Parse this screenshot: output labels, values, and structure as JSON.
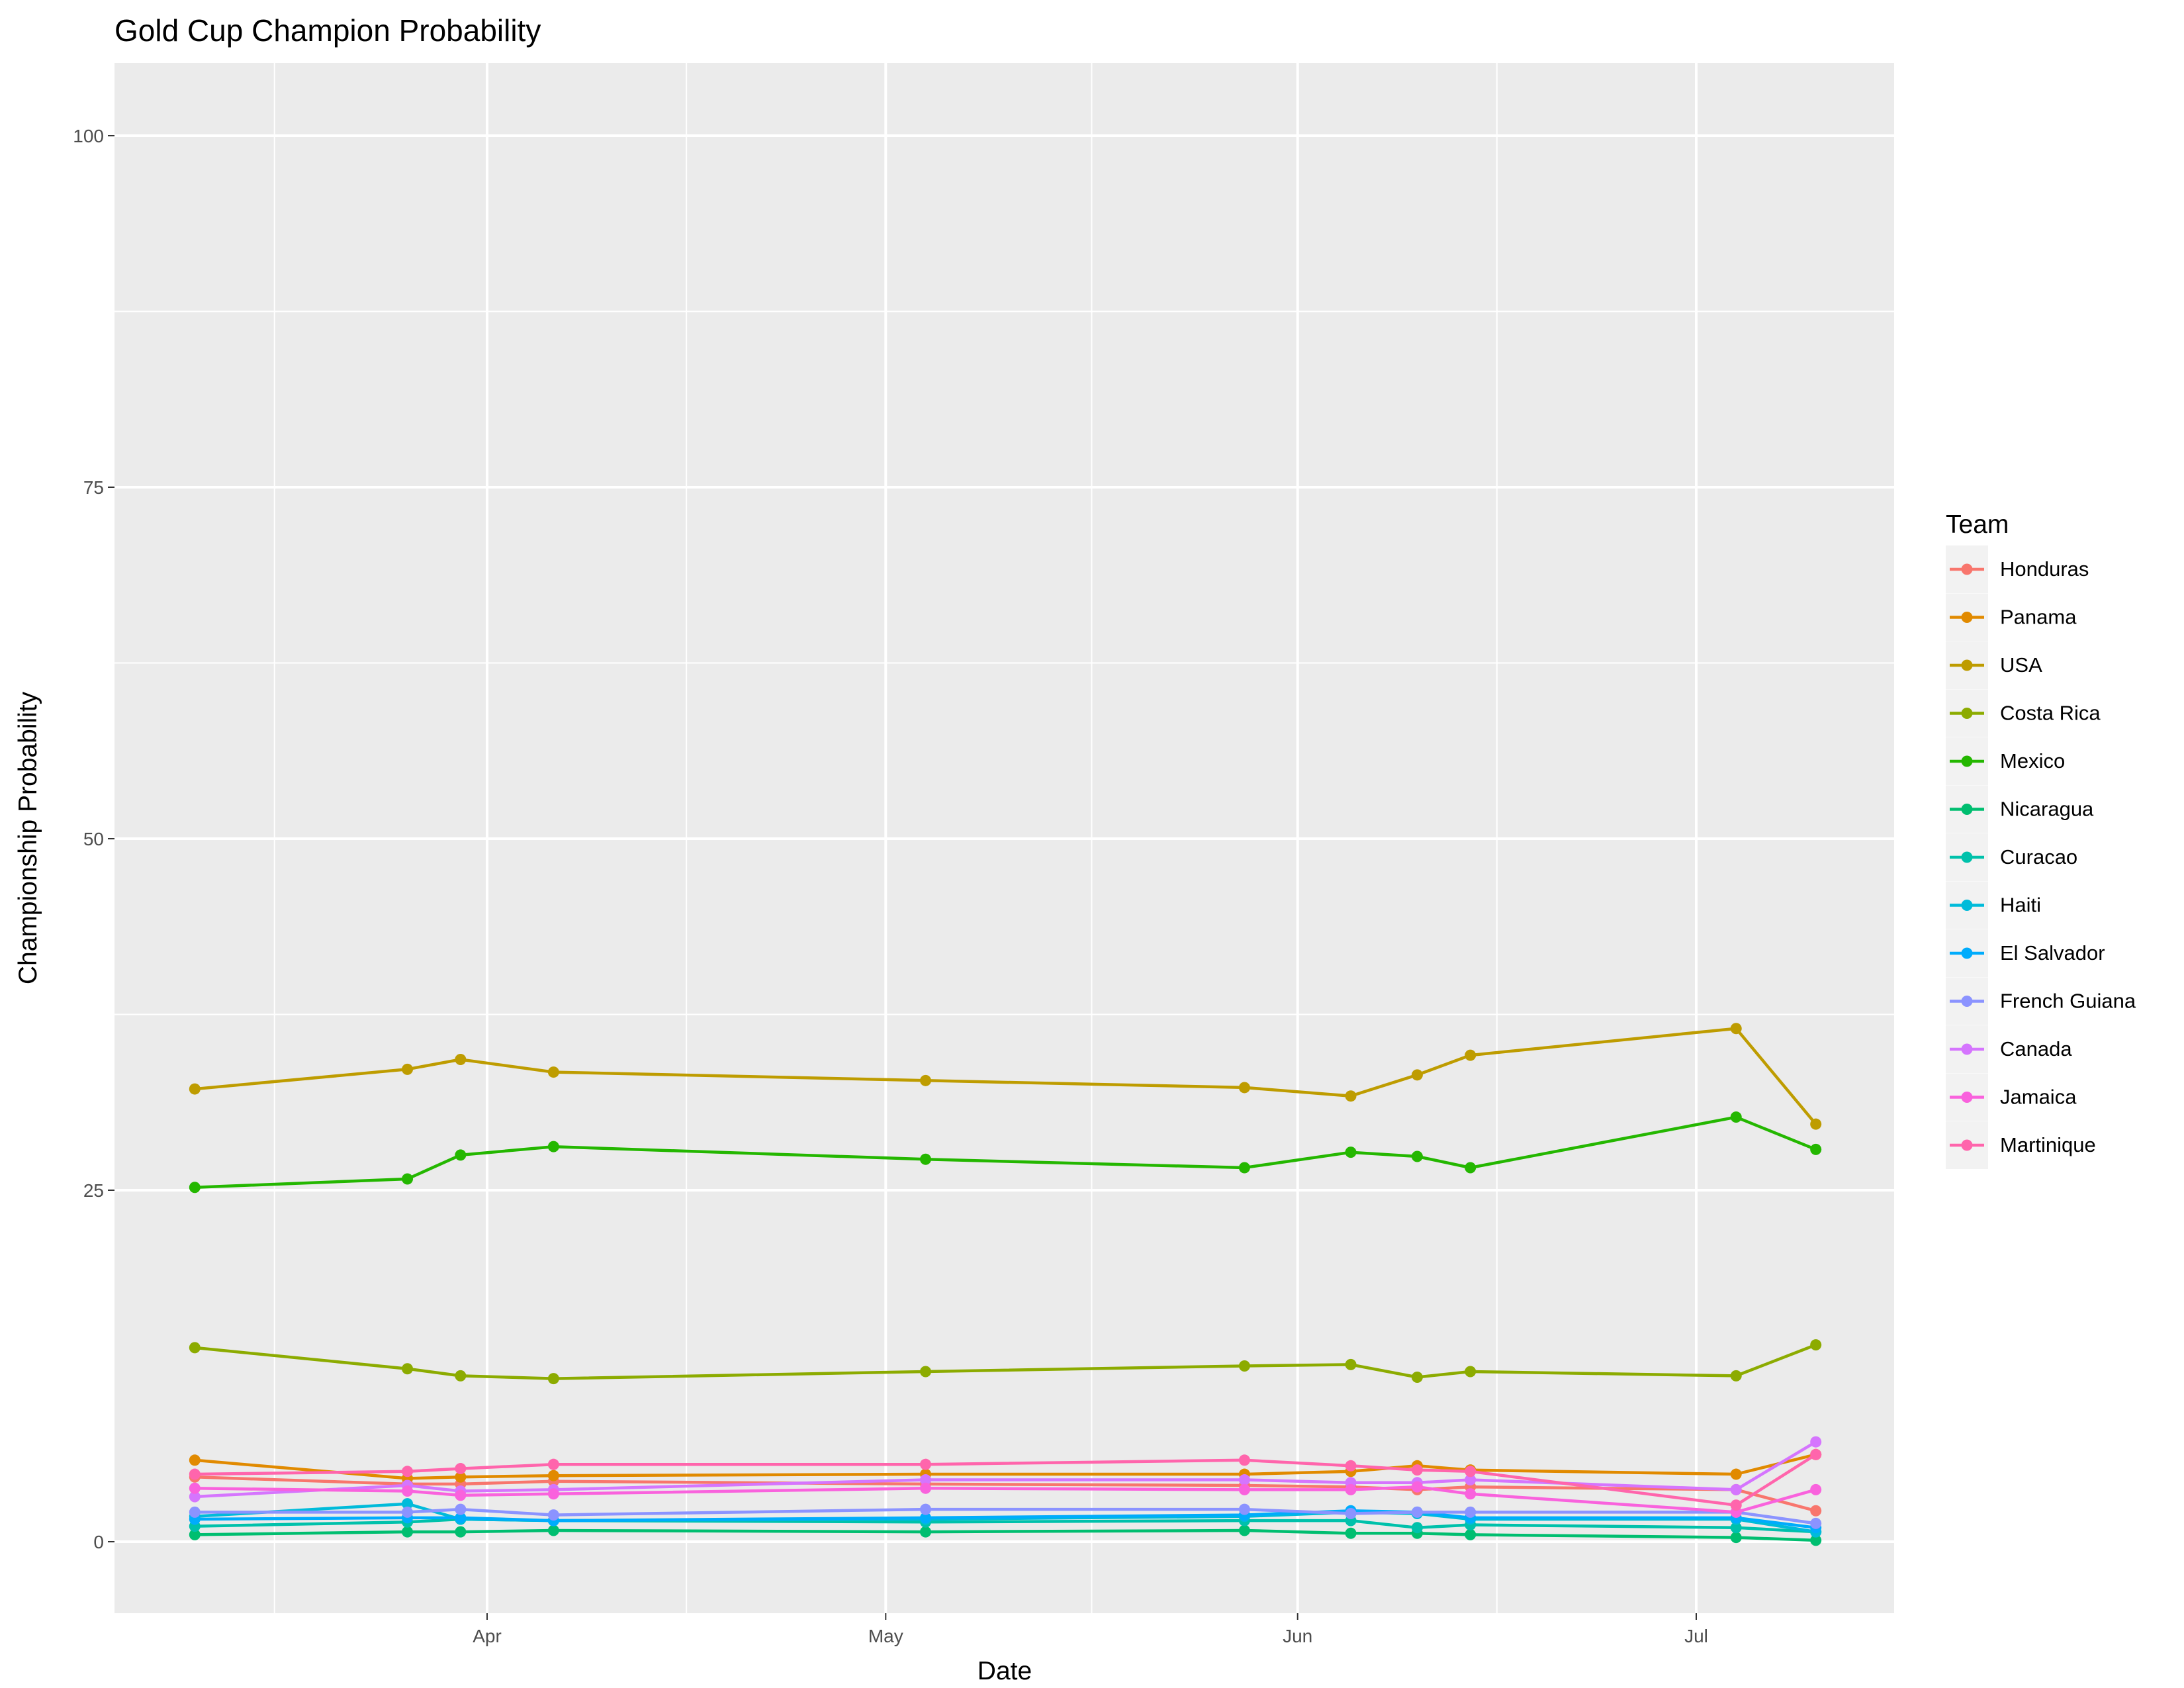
{
  "chart_data": {
    "type": "line",
    "title": "Gold Cup Champion Probability",
    "xlabel": "Date",
    "ylabel": "Championship Probability",
    "ylim": [
      -5,
      105
    ],
    "yticks": [
      0,
      25,
      50,
      75,
      100
    ],
    "xticks": [
      {
        "label": "Apr",
        "date": "Apr 1"
      },
      {
        "label": "May",
        "date": "May 1"
      },
      {
        "label": "Jun",
        "date": "Jun 1"
      },
      {
        "label": "Jul",
        "date": "Jul 1"
      }
    ],
    "grid": true,
    "legend": {
      "title": "Team",
      "position": "right"
    },
    "x": [
      "Mar 10",
      "Mar 26",
      "Mar 30",
      "Apr 6",
      "May 4",
      "May 28",
      "Jun 5",
      "Jun 10",
      "Jun 14",
      "Jul 4",
      "Jul 10"
    ],
    "series": [
      {
        "name": "Honduras",
        "color": "#F8766D",
        "values": [
          4.6,
          4.1,
          4.1,
          4.3,
          4.1,
          4.0,
          3.9,
          3.7,
          3.9,
          3.7,
          2.2
        ]
      },
      {
        "name": "Panama",
        "color": "#E18A00",
        "values": [
          5.8,
          4.5,
          4.6,
          4.7,
          4.8,
          4.8,
          5.0,
          5.4,
          5.1,
          4.8,
          6.2
        ]
      },
      {
        "name": "USA",
        "color": "#BE9C00",
        "values": [
          32.2,
          33.6,
          34.3,
          33.4,
          32.8,
          32.3,
          31.7,
          33.2,
          34.6,
          36.5,
          29.7
        ]
      },
      {
        "name": "Costa Rica",
        "color": "#8CAB00",
        "values": [
          13.8,
          12.3,
          11.8,
          11.6,
          12.1,
          12.5,
          12.6,
          11.7,
          12.1,
          11.8,
          14.0
        ]
      },
      {
        "name": "Mexico",
        "color": "#24B700",
        "values": [
          25.2,
          25.8,
          27.5,
          28.1,
          27.2,
          26.6,
          27.7,
          27.4,
          26.6,
          30.2,
          27.9
        ]
      },
      {
        "name": "Nicaragua",
        "color": "#00BE70",
        "values": [
          0.5,
          0.7,
          0.7,
          0.8,
          0.7,
          0.8,
          0.6,
          0.6,
          0.5,
          0.3,
          0.1
        ]
      },
      {
        "name": "Curacao",
        "color": "#00C1AB",
        "values": [
          1.1,
          1.4,
          1.6,
          1.5,
          1.4,
          1.5,
          1.5,
          1.0,
          1.2,
          1.0,
          0.7
        ]
      },
      {
        "name": "Haiti",
        "color": "#00BBDA",
        "values": [
          1.8,
          2.7,
          1.6,
          1.5,
          1.6,
          1.8,
          2.1,
          2.0,
          1.6,
          1.6,
          0.7
        ]
      },
      {
        "name": "El Salvador",
        "color": "#00ACFC",
        "values": [
          1.6,
          1.7,
          1.7,
          1.5,
          1.7,
          1.9,
          2.2,
          2.1,
          1.7,
          1.7,
          1.0
        ]
      },
      {
        "name": "French Guiana",
        "color": "#8B93FF",
        "values": [
          2.1,
          2.1,
          2.3,
          1.9,
          2.3,
          2.3,
          2.0,
          2.1,
          2.1,
          2.1,
          1.3
        ]
      },
      {
        "name": "Canada",
        "color": "#D575FE",
        "values": [
          3.2,
          4.0,
          3.6,
          3.7,
          4.4,
          4.4,
          4.2,
          4.2,
          4.4,
          3.7,
          7.1
        ]
      },
      {
        "name": "Jamaica",
        "color": "#F962DD",
        "values": [
          3.8,
          3.6,
          3.3,
          3.4,
          3.8,
          3.7,
          3.7,
          3.9,
          3.4,
          2.1,
          3.7
        ]
      },
      {
        "name": "Martinique",
        "color": "#FF65AC",
        "values": [
          4.8,
          5.0,
          5.2,
          5.5,
          5.5,
          5.8,
          5.4,
          5.1,
          5.0,
          2.6,
          6.2
        ]
      }
    ]
  }
}
